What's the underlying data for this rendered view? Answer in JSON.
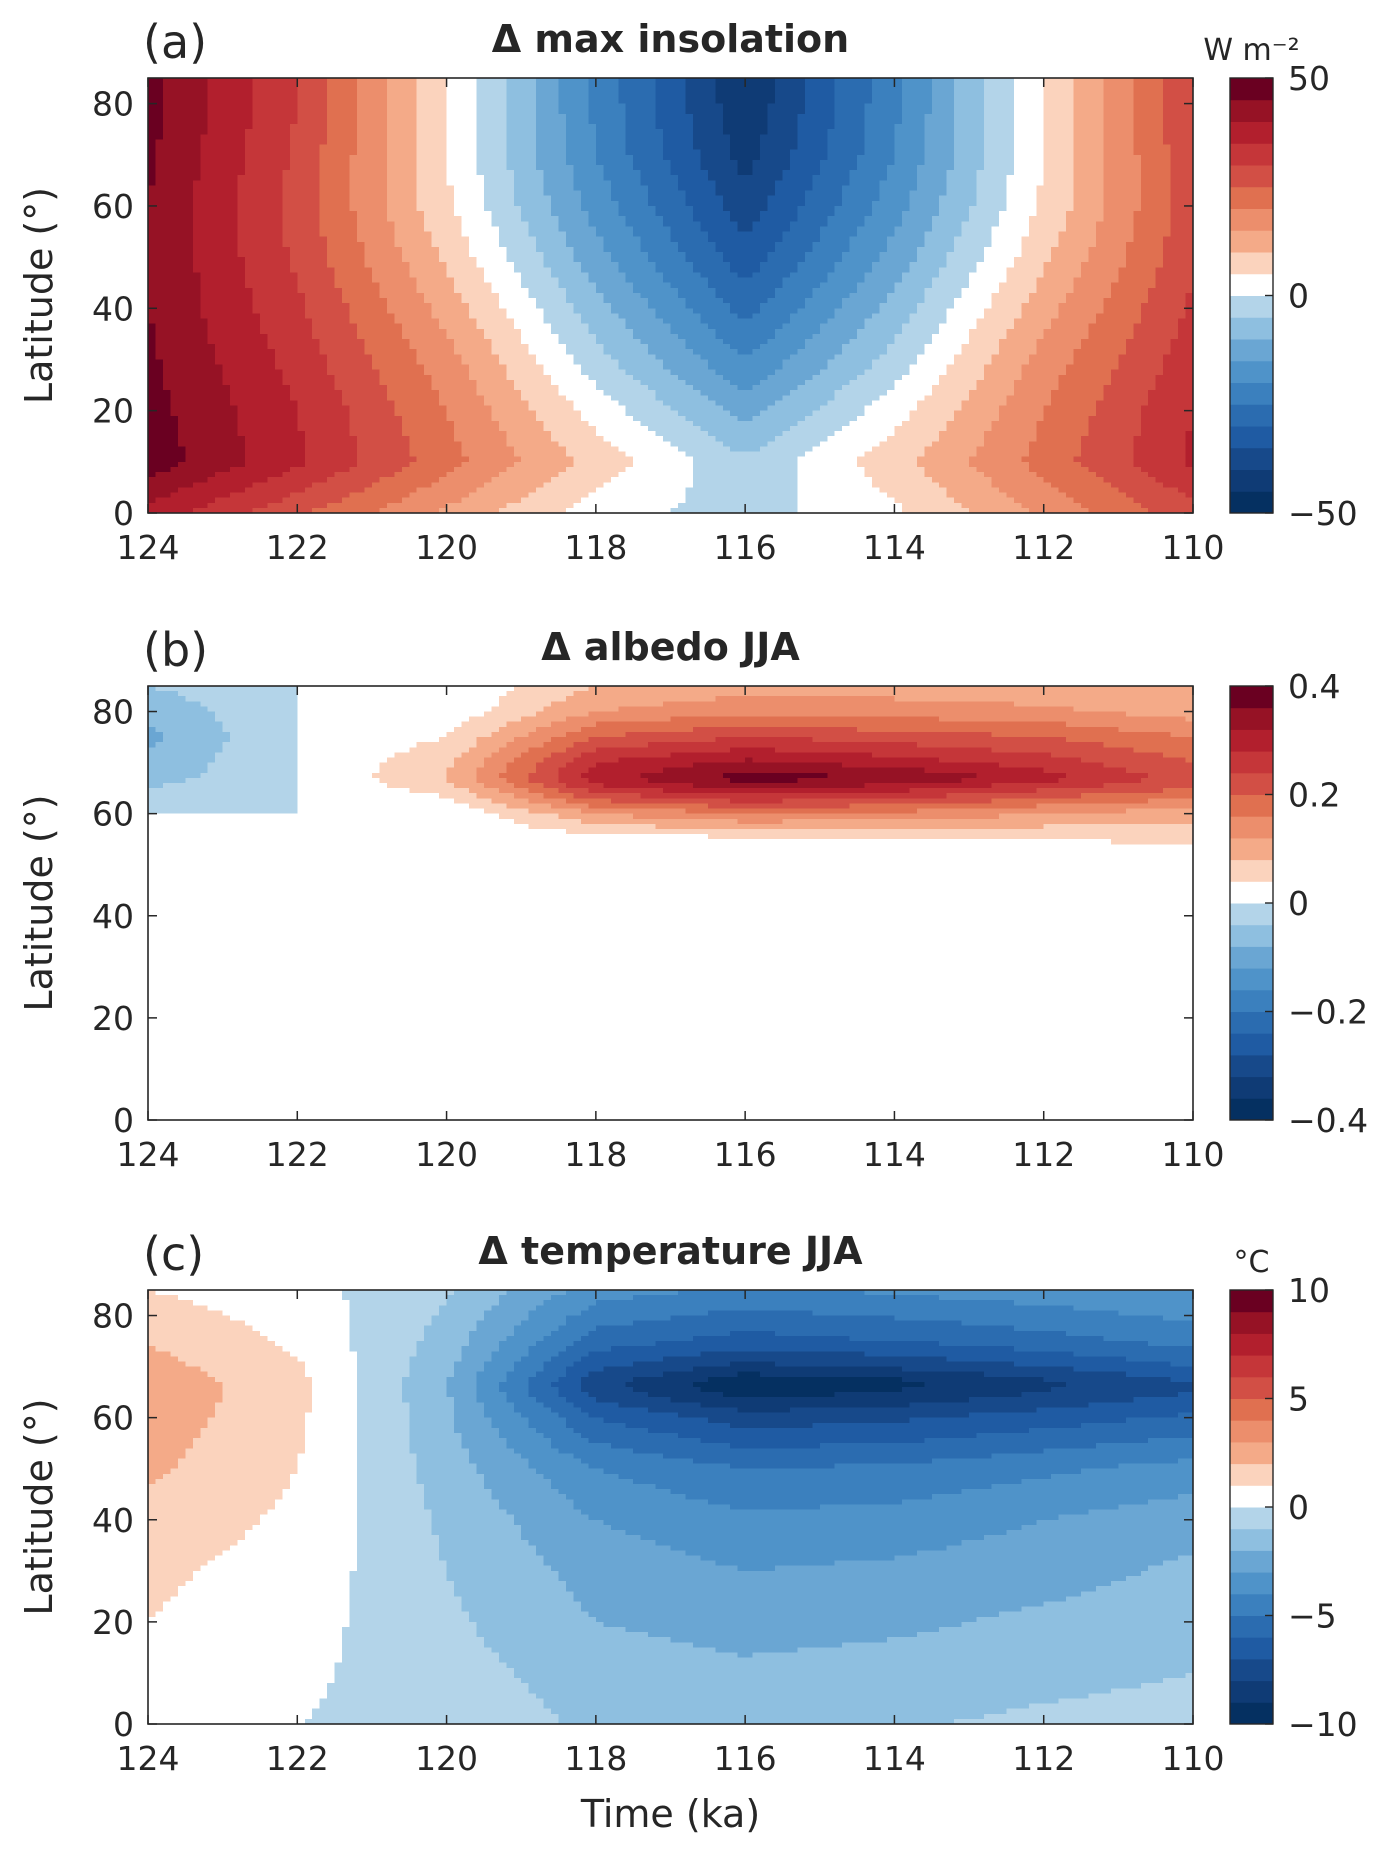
{
  "chart_data": [
    {
      "type": "heatmap",
      "panel_label": "(a)",
      "title": "Δ max insolation",
      "xlabel": "",
      "ylabel": "Latitude (°)",
      "xlim": [
        124,
        110
      ],
      "ylim": [
        0,
        85
      ],
      "xticks": [
        "124",
        "122",
        "120",
        "118",
        "116",
        "114",
        "112",
        "110"
      ],
      "yticks": [
        "0",
        "20",
        "40",
        "60",
        "80"
      ],
      "colorbar": {
        "units": "W m⁻²",
        "min": -50,
        "max": 50,
        "ticks": [
          "50",
          "0",
          "−50"
        ]
      },
      "grid": {
        "x": [
          124,
          122,
          120,
          118,
          116,
          114,
          112,
          110
        ],
        "y": [
          0,
          10,
          20,
          30,
          40,
          50,
          60,
          70,
          80,
          85
        ],
        "z": [
          [
            38,
            26,
            14,
            2,
            -2,
            4,
            16,
            28
          ],
          [
            48,
            36,
            22,
            8,
            -4,
            8,
            22,
            36
          ],
          [
            47,
            35,
            20,
            3,
            -12,
            3,
            20,
            35
          ],
          [
            46,
            33,
            17,
            -3,
            -20,
            -3,
            17,
            33
          ],
          [
            45,
            31,
            13,
            -8,
            -27,
            -8,
            13,
            31
          ],
          [
            45,
            29,
            9,
            -13,
            -33,
            -13,
            9,
            29
          ],
          [
            45,
            28,
            6,
            -17,
            -38,
            -17,
            6,
            28
          ],
          [
            46,
            29,
            5,
            -20,
            -42,
            -20,
            5,
            29
          ],
          [
            47,
            30,
            5,
            -21,
            -44,
            -21,
            5,
            30
          ],
          [
            47,
            30,
            5,
            -21,
            -45,
            -21,
            5,
            30
          ]
        ]
      }
    },
    {
      "type": "heatmap",
      "panel_label": "(b)",
      "title": "Δ albedo JJA",
      "xlabel": "",
      "ylabel": "Latitude (°)",
      "xlim": [
        124,
        110
      ],
      "ylim": [
        0,
        85
      ],
      "xticks": [
        "124",
        "122",
        "120",
        "118",
        "116",
        "114",
        "112",
        "110"
      ],
      "yticks": [
        "0",
        "20",
        "40",
        "60",
        "80"
      ],
      "colorbar": {
        "units": "",
        "min": -0.4,
        "max": 0.4,
        "ticks": [
          "0.4",
          "0.2",
          "0",
          "−0.2",
          "−0.4"
        ]
      },
      "grid": {
        "x": [
          124,
          122,
          120,
          118,
          116,
          114,
          112,
          110
        ],
        "y": [
          0,
          50,
          55,
          60,
          65,
          67,
          70,
          75,
          80,
          85
        ],
        "z": [
          [
            0,
            0,
            0,
            0,
            0,
            0,
            0,
            0
          ],
          [
            0,
            0,
            0,
            0,
            0,
            0,
            0,
            0
          ],
          [
            0,
            0,
            0,
            0.02,
            0.03,
            0.04,
            0.04,
            0.05
          ],
          [
            0,
            0,
            0,
            0.12,
            0.16,
            0.15,
            0.12,
            0.1
          ],
          [
            -0.04,
            0,
            0.06,
            0.27,
            0.33,
            0.3,
            0.25,
            0.2
          ],
          [
            -0.06,
            0,
            0.08,
            0.3,
            0.38,
            0.36,
            0.3,
            0.22
          ],
          [
            -0.07,
            0,
            0.07,
            0.28,
            0.33,
            0.3,
            0.26,
            0.2
          ],
          [
            -0.09,
            0,
            0.04,
            0.2,
            0.24,
            0.22,
            0.2,
            0.16
          ],
          [
            -0.07,
            0,
            0.01,
            0.12,
            0.15,
            0.14,
            0.13,
            0.1
          ],
          [
            -0.04,
            0,
            0,
            0.08,
            0.1,
            0.1,
            0.09,
            0.08
          ]
        ]
      }
    },
    {
      "type": "heatmap",
      "panel_label": "(c)",
      "title": "Δ temperature JJA",
      "xlabel": "Time (ka)",
      "ylabel": "Latitude (°)",
      "xlim": [
        124,
        110
      ],
      "ylim": [
        0,
        85
      ],
      "xticks": [
        "124",
        "122",
        "120",
        "118",
        "116",
        "114",
        "112",
        "110"
      ],
      "yticks": [
        "0",
        "20",
        "40",
        "60",
        "80"
      ],
      "colorbar": {
        "units": "°C",
        "min": -10,
        "max": 10,
        "ticks": [
          "10",
          "5",
          "0",
          "−5",
          "−10"
        ]
      },
      "grid": {
        "x": [
          124,
          122,
          120,
          118,
          116,
          114,
          112,
          110
        ],
        "y": [
          0,
          10,
          20,
          30,
          40,
          50,
          60,
          65,
          67,
          70,
          75,
          85
        ],
        "z": [
          [
            0.3,
            0,
            -0.3,
            -1.2,
            -1.3,
            -1.1,
            -0.8,
            -0.6
          ],
          [
            0.7,
            0.2,
            -0.6,
            -1.5,
            -1.8,
            -1.6,
            -1.3,
            -1
          ],
          [
            1,
            0.4,
            -0.8,
            -2,
            -2.4,
            -2.2,
            -1.8,
            -1.4
          ],
          [
            1.2,
            0.6,
            -1,
            -2.4,
            -3,
            -2.8,
            -2.4,
            -1.8
          ],
          [
            1.6,
            0.8,
            -1.2,
            -3,
            -3.8,
            -3.6,
            -3,
            -2.4
          ],
          [
            2.2,
            1,
            -1.5,
            -4,
            -5,
            -4.8,
            -4.2,
            -3.6
          ],
          [
            2.6,
            1.2,
            -1.8,
            -6,
            -7.5,
            -7.2,
            -6.5,
            -5.8
          ],
          [
            2.7,
            1.3,
            -1.9,
            -7.5,
            -9.5,
            -9,
            -8,
            -7
          ],
          [
            2.7,
            1.3,
            -1.9,
            -7.6,
            -9.8,
            -9.3,
            -8.2,
            -7
          ],
          [
            2.4,
            1.1,
            -1.7,
            -6.8,
            -8.3,
            -7.8,
            -7,
            -6
          ],
          [
            1.9,
            0.8,
            -1.4,
            -5.5,
            -6.4,
            -6,
            -5.4,
            -4.6
          ],
          [
            1,
            0.4,
            -0.9,
            -3.5,
            -4.2,
            -3.8,
            -3.4,
            -3
          ]
        ]
      }
    }
  ]
}
